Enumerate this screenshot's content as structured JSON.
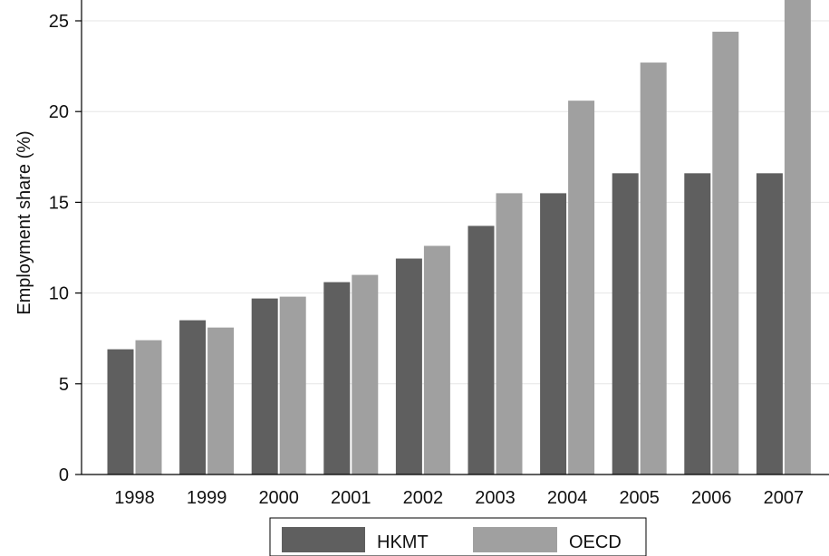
{
  "chart_data": {
    "type": "bar",
    "title": "",
    "xlabel": "",
    "ylabel": "Employment share (%)",
    "categories": [
      "1998",
      "1999",
      "2000",
      "2001",
      "2002",
      "2003",
      "2004",
      "2005",
      "2006",
      "2007"
    ],
    "series": [
      {
        "name": "HKMT",
        "color": "#5f5f5f",
        "values": [
          6.9,
          8.5,
          9.7,
          10.6,
          11.9,
          13.7,
          15.5,
          16.6,
          16.6,
          16.6
        ]
      },
      {
        "name": "OECD",
        "color": "#a0a0a0",
        "values": [
          7.4,
          8.1,
          9.8,
          11.0,
          12.6,
          15.5,
          20.6,
          22.7,
          24.4,
          26.5
        ]
      }
    ],
    "ylim": [
      0,
      25
    ],
    "yticks": [
      0,
      5,
      10,
      15,
      20,
      25
    ],
    "grid": true,
    "legend_position": "bottom"
  }
}
